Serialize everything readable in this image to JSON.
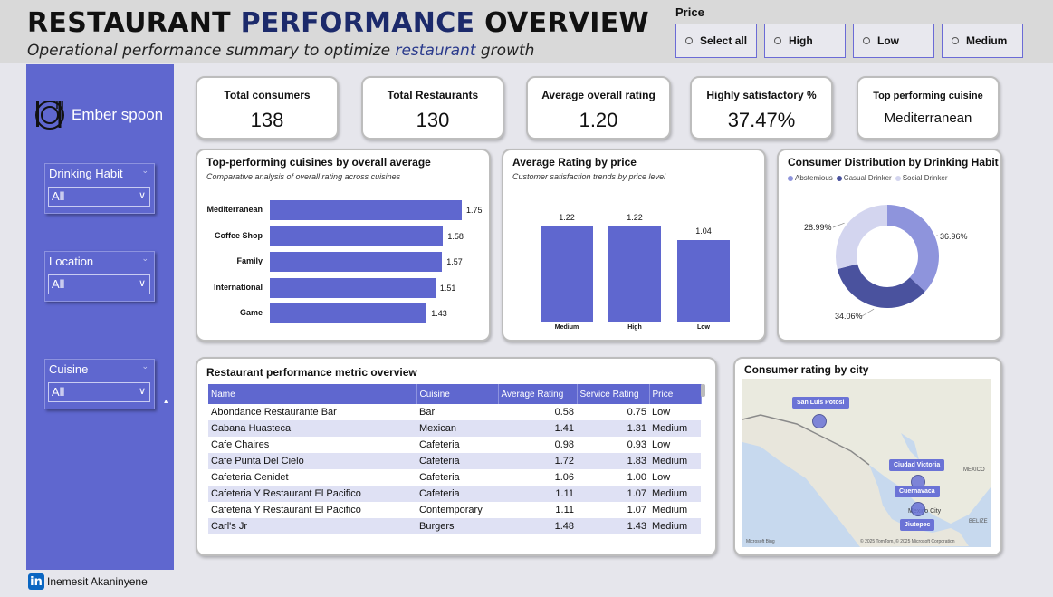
{
  "header": {
    "title_part1": "RESTAURANT",
    "title_accent": "PERFORMANCE",
    "title_part2": "OVERVIEW",
    "subtitle_part1": "Operational performance summary to optimize",
    "subtitle_accent": "restaurant",
    "subtitle_part2": "growth"
  },
  "price_slicer": {
    "label": "Price",
    "options": [
      "Select all",
      "High",
      "Low",
      "Medium"
    ]
  },
  "sidebar": {
    "brand": "Ember spoon",
    "filters": [
      {
        "label": "Drinking Habit",
        "value": "All"
      },
      {
        "label": "Location",
        "value": "All"
      },
      {
        "label": "Cuisine",
        "value": "All"
      }
    ]
  },
  "kpis": [
    {
      "label": "Total consumers",
      "value": "138"
    },
    {
      "label": "Total Restaurants",
      "value": "130"
    },
    {
      "label": "Average overall rating",
      "value": "1.20"
    },
    {
      "label": "Highly satisfactory %",
      "value": "37.47%"
    },
    {
      "label": "Top performing cuisine",
      "value": "Mediterranean"
    }
  ],
  "chart_data": [
    {
      "type": "bar",
      "orientation": "horizontal",
      "title": "Top-performing cuisines by overall average",
      "subtitle": "Comparative analysis of overall rating across cuisines",
      "categories": [
        "Mediterranean",
        "Coffee Shop",
        "Family",
        "International",
        "Game"
      ],
      "values": [
        1.75,
        1.58,
        1.57,
        1.51,
        1.43
      ],
      "labels": [
        "1.75",
        "1.58",
        "1.57",
        "1.51",
        "1.43"
      ],
      "color": "#5f67cf"
    },
    {
      "type": "bar",
      "title": "Average Rating by price",
      "subtitle": "Customer satisfaction trends by price level",
      "categories": [
        "Medium",
        "High",
        "Low"
      ],
      "values": [
        1.22,
        1.22,
        1.04
      ],
      "labels": [
        "1.22",
        "1.22",
        "1.04"
      ],
      "ylim": [
        0,
        1.3
      ],
      "color": "#5f67cf"
    },
    {
      "type": "pie",
      "donut": true,
      "title": "Consumer Distribution by Drinking Habit",
      "categories": [
        "Abstemious",
        "Casual Drinker",
        "Social Drinker"
      ],
      "values": [
        36.96,
        34.06,
        28.99
      ],
      "labels": [
        "36.96%",
        "34.06%",
        "28.99%"
      ],
      "colors": [
        "#8e94dc",
        "#4a529e",
        "#d3d5ef"
      ]
    }
  ],
  "table": {
    "title": "Restaurant performance metric overview",
    "columns": [
      "Name",
      "Cuisine",
      "Average Rating",
      "Service Rating",
      "Price"
    ],
    "rows": [
      [
        "Abondance Restaurante Bar",
        "Bar",
        "0.58",
        "0.75",
        "Low"
      ],
      [
        "Cabana Huasteca",
        "Mexican",
        "1.41",
        "1.31",
        "Medium"
      ],
      [
        "Cafe Chaires",
        "Cafeteria",
        "0.98",
        "0.93",
        "Low"
      ],
      [
        "Cafe Punta Del Cielo",
        "Cafeteria",
        "1.72",
        "1.83",
        "Medium"
      ],
      [
        "Cafeteria Cenidet",
        "Cafeteria",
        "1.06",
        "1.00",
        "Low"
      ],
      [
        "Cafeteria Y Restaurant El Pacifico",
        "Cafeteria",
        "1.11",
        "1.07",
        "Medium"
      ],
      [
        "Cafeteria Y Restaurant El Pacifico",
        "Contemporary",
        "1.11",
        "1.07",
        "Medium"
      ],
      [
        "Carl's Jr",
        "Burgers",
        "1.48",
        "1.43",
        "Medium"
      ]
    ]
  },
  "map": {
    "title": "Consumer rating by city",
    "cities": [
      "San Luis Potosi",
      "Ciudad Victoria",
      "Cuernavaca",
      "Jiutepec"
    ],
    "place_labels": [
      "MEXICO",
      "BELIZE",
      "Mexico City",
      "MEXICO"
    ],
    "attribution": "© 2025 TomTom, © 2025 Microsoft Corporation",
    "provider": "Microsoft Bing"
  },
  "footer": {
    "icon": "in",
    "author": "Inemesit Akaninyene"
  }
}
